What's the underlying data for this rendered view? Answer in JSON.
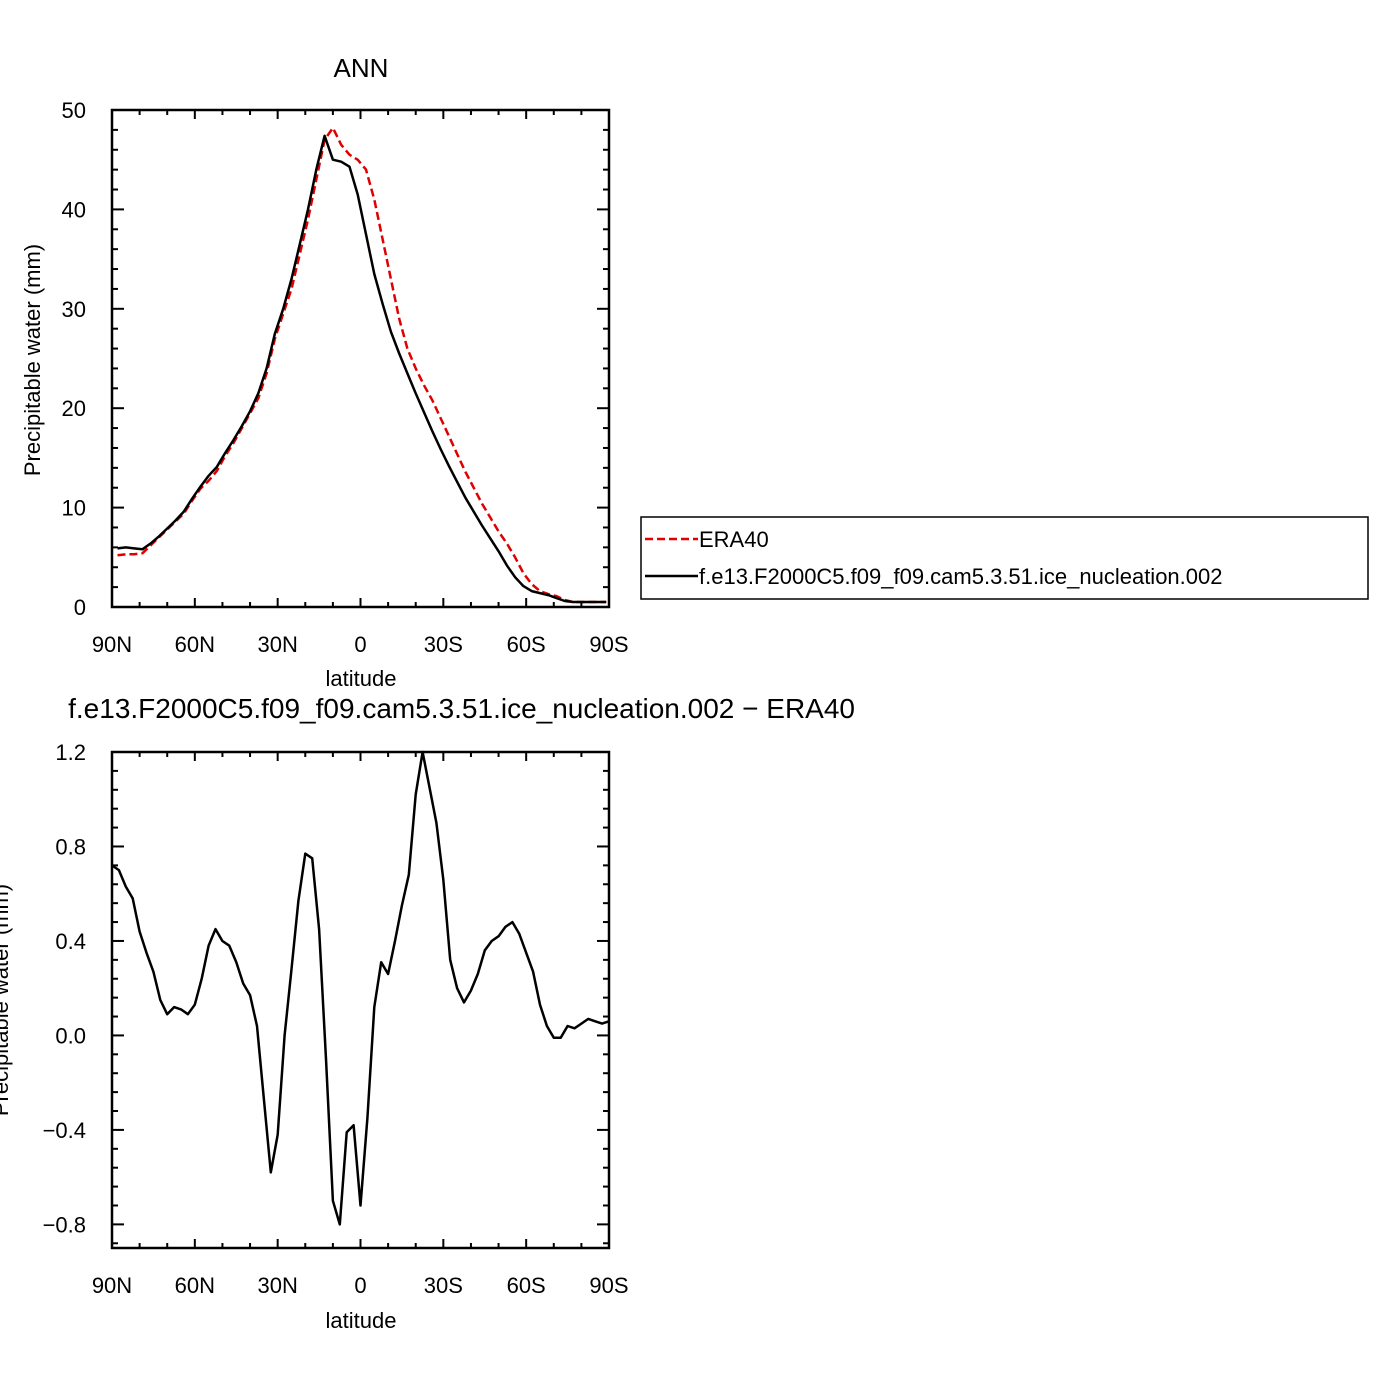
{
  "chart_data": [
    {
      "type": "line",
      "title": "ANN",
      "xlabel": "latitude",
      "ylabel": "Precipitable water (mm)",
      "xlim": [
        90,
        -90
      ],
      "ylim": [
        0,
        50
      ],
      "x_ticks": [
        90,
        60,
        30,
        0,
        -30,
        -60,
        -90
      ],
      "x_tick_labels": [
        "90N",
        "60N",
        "30N",
        "0",
        "30S",
        "60S",
        "90S"
      ],
      "y_ticks": [
        0,
        10,
        20,
        30,
        40,
        50
      ],
      "y_tick_labels": [
        "0",
        "10",
        "20",
        "30",
        "40",
        "50"
      ],
      "legend": {
        "placement": "right",
        "entries": [
          {
            "name": "ERA40",
            "color": "#e00000",
            "style": "dashed"
          },
          {
            "name": "f.e13.F2000C5.f09_f09.cam5.3.51.ice_nucleation.002",
            "color": "#000000",
            "style": "solid"
          }
        ]
      },
      "series": [
        {
          "name": "ERA40",
          "color": "#e00000",
          "style": "dashed",
          "x": [
            88,
            85,
            82,
            79,
            76,
            73,
            70,
            67,
            64,
            61,
            58,
            55,
            52,
            49,
            46,
            43,
            40,
            37,
            34,
            31,
            28,
            25,
            22,
            19,
            16,
            13,
            10,
            7,
            4,
            1,
            -2,
            -5,
            -8,
            -11,
            -14,
            -17,
            -20,
            -23,
            -26,
            -29,
            -32,
            -35,
            -38,
            -41,
            -44,
            -47,
            -50,
            -53,
            -56,
            -59,
            -62,
            -65,
            -68,
            -71,
            -74,
            -77,
            -80,
            -83,
            -86,
            -89
          ],
          "y": [
            5.2,
            5.3,
            5.3,
            5.4,
            6.2,
            7.0,
            7.8,
            8.6,
            9.4,
            10.7,
            11.9,
            12.7,
            13.7,
            15.2,
            16.5,
            18.0,
            19.5,
            21.0,
            23.5,
            27.0,
            29.5,
            32.0,
            35.5,
            39.0,
            43.0,
            47.0,
            48.2,
            46.5,
            45.5,
            45.0,
            44.0,
            41.0,
            37.0,
            33.0,
            29.0,
            26.0,
            24.0,
            22.3,
            20.8,
            19.0,
            17.2,
            15.4,
            13.6,
            12.0,
            10.4,
            9.0,
            7.6,
            6.4,
            5.0,
            3.4,
            2.3,
            1.6,
            1.3,
            1.1,
            0.7,
            0.5,
            0.5,
            0.5,
            0.5,
            0.5
          ]
        },
        {
          "name": "f.e13.F2000C5.f09_f09.cam5.3.51.ice_nucleation.002",
          "color": "#000000",
          "style": "solid",
          "x": [
            88,
            85,
            82,
            79,
            76,
            73,
            70,
            67,
            64,
            61,
            58,
            55,
            52,
            49,
            46,
            43,
            40,
            37,
            34,
            31,
            28,
            25,
            22,
            19,
            16,
            13,
            10,
            7,
            4,
            1,
            -2,
            -5,
            -8,
            -11,
            -14,
            -17,
            -20,
            -23,
            -26,
            -29,
            -32,
            -35,
            -38,
            -41,
            -44,
            -47,
            -50,
            -53,
            -56,
            -59,
            -62,
            -65,
            -68,
            -71,
            -74,
            -77,
            -80,
            -83,
            -86,
            -89
          ],
          "y": [
            5.9,
            6.0,
            5.9,
            5.8,
            6.4,
            7.1,
            7.9,
            8.7,
            9.6,
            10.9,
            12.1,
            13.2,
            14.1,
            15.5,
            16.8,
            18.2,
            19.7,
            21.5,
            24.0,
            27.5,
            30.0,
            33.0,
            36.5,
            40.0,
            44.0,
            47.4,
            45.0,
            44.8,
            44.3,
            41.5,
            37.5,
            33.5,
            30.5,
            27.7,
            25.5,
            23.5,
            21.5,
            19.6,
            17.7,
            15.9,
            14.2,
            12.6,
            11.0,
            9.6,
            8.2,
            6.9,
            5.6,
            4.2,
            3.0,
            2.1,
            1.6,
            1.4,
            1.2,
            0.9,
            0.6,
            0.5,
            0.5,
            0.5,
            0.5,
            0.5
          ]
        }
      ]
    },
    {
      "type": "line",
      "title": "f.e13.F2000C5.f09_f09.cam5.3.51.ice_nucleation.002 − ERA40",
      "xlabel": "latitude",
      "ylabel": "Precipitable water (mm)",
      "xlim": [
        90,
        -90
      ],
      "ylim": [
        -0.9,
        1.2
      ],
      "x_ticks": [
        90,
        60,
        30,
        0,
        -30,
        -60,
        -90
      ],
      "x_tick_labels": [
        "90N",
        "60N",
        "30N",
        "0",
        "30S",
        "60S",
        "90S"
      ],
      "y_ticks": [
        -0.8,
        -0.4,
        0.0,
        0.4,
        0.8,
        1.2
      ],
      "y_tick_labels": [
        "−0.8",
        "−0.4",
        "0.0",
        "0.4",
        "0.8",
        "1.2"
      ],
      "series": [
        {
          "color": "#000000",
          "x": [
            90,
            87.5,
            85,
            82.5,
            80,
            77.5,
            75,
            72.5,
            70,
            67.5,
            65,
            62.5,
            60,
            57.5,
            55,
            52.5,
            50,
            47.5,
            45,
            42.5,
            40,
            37.5,
            35,
            32.5,
            30,
            27.5,
            25,
            22.5,
            20,
            17.5,
            15,
            12.5,
            10,
            7.5,
            5,
            2.5,
            0,
            -2.5,
            -5,
            -7.5,
            -10,
            -12.5,
            -15,
            -17.5,
            -20,
            -22.5,
            -25,
            -27.5,
            -30,
            -32.5,
            -35,
            -37.5,
            -40,
            -42.5,
            -45,
            -47.5,
            -50,
            -52.5,
            -55,
            -57.5,
            -60,
            -62.5,
            -65,
            -67.5,
            -70,
            -72.5,
            -75,
            -77.5,
            -80,
            -82.5,
            -85,
            -87.5,
            -90
          ],
          "y": [
            0.72,
            0.7,
            0.63,
            0.58,
            0.44,
            0.35,
            0.27,
            0.15,
            0.09,
            0.12,
            0.11,
            0.09,
            0.13,
            0.24,
            0.38,
            0.45,
            0.4,
            0.38,
            0.31,
            0.22,
            0.17,
            0.04,
            -0.27,
            -0.58,
            -0.42,
            0.0,
            0.28,
            0.57,
            0.77,
            0.75,
            0.45,
            -0.1,
            -0.7,
            -0.8,
            -0.41,
            -0.38,
            -0.72,
            -0.35,
            0.12,
            0.31,
            0.26,
            0.4,
            0.55,
            0.68,
            1.02,
            1.2,
            1.05,
            0.9,
            0.66,
            0.32,
            0.2,
            0.14,
            0.19,
            0.26,
            0.36,
            0.4,
            0.42,
            0.46,
            0.48,
            0.43,
            0.35,
            0.27,
            0.13,
            0.04,
            -0.01,
            -0.01,
            0.04,
            0.03,
            0.05,
            0.07,
            0.06,
            0.05,
            0.06
          ]
        }
      ]
    }
  ]
}
